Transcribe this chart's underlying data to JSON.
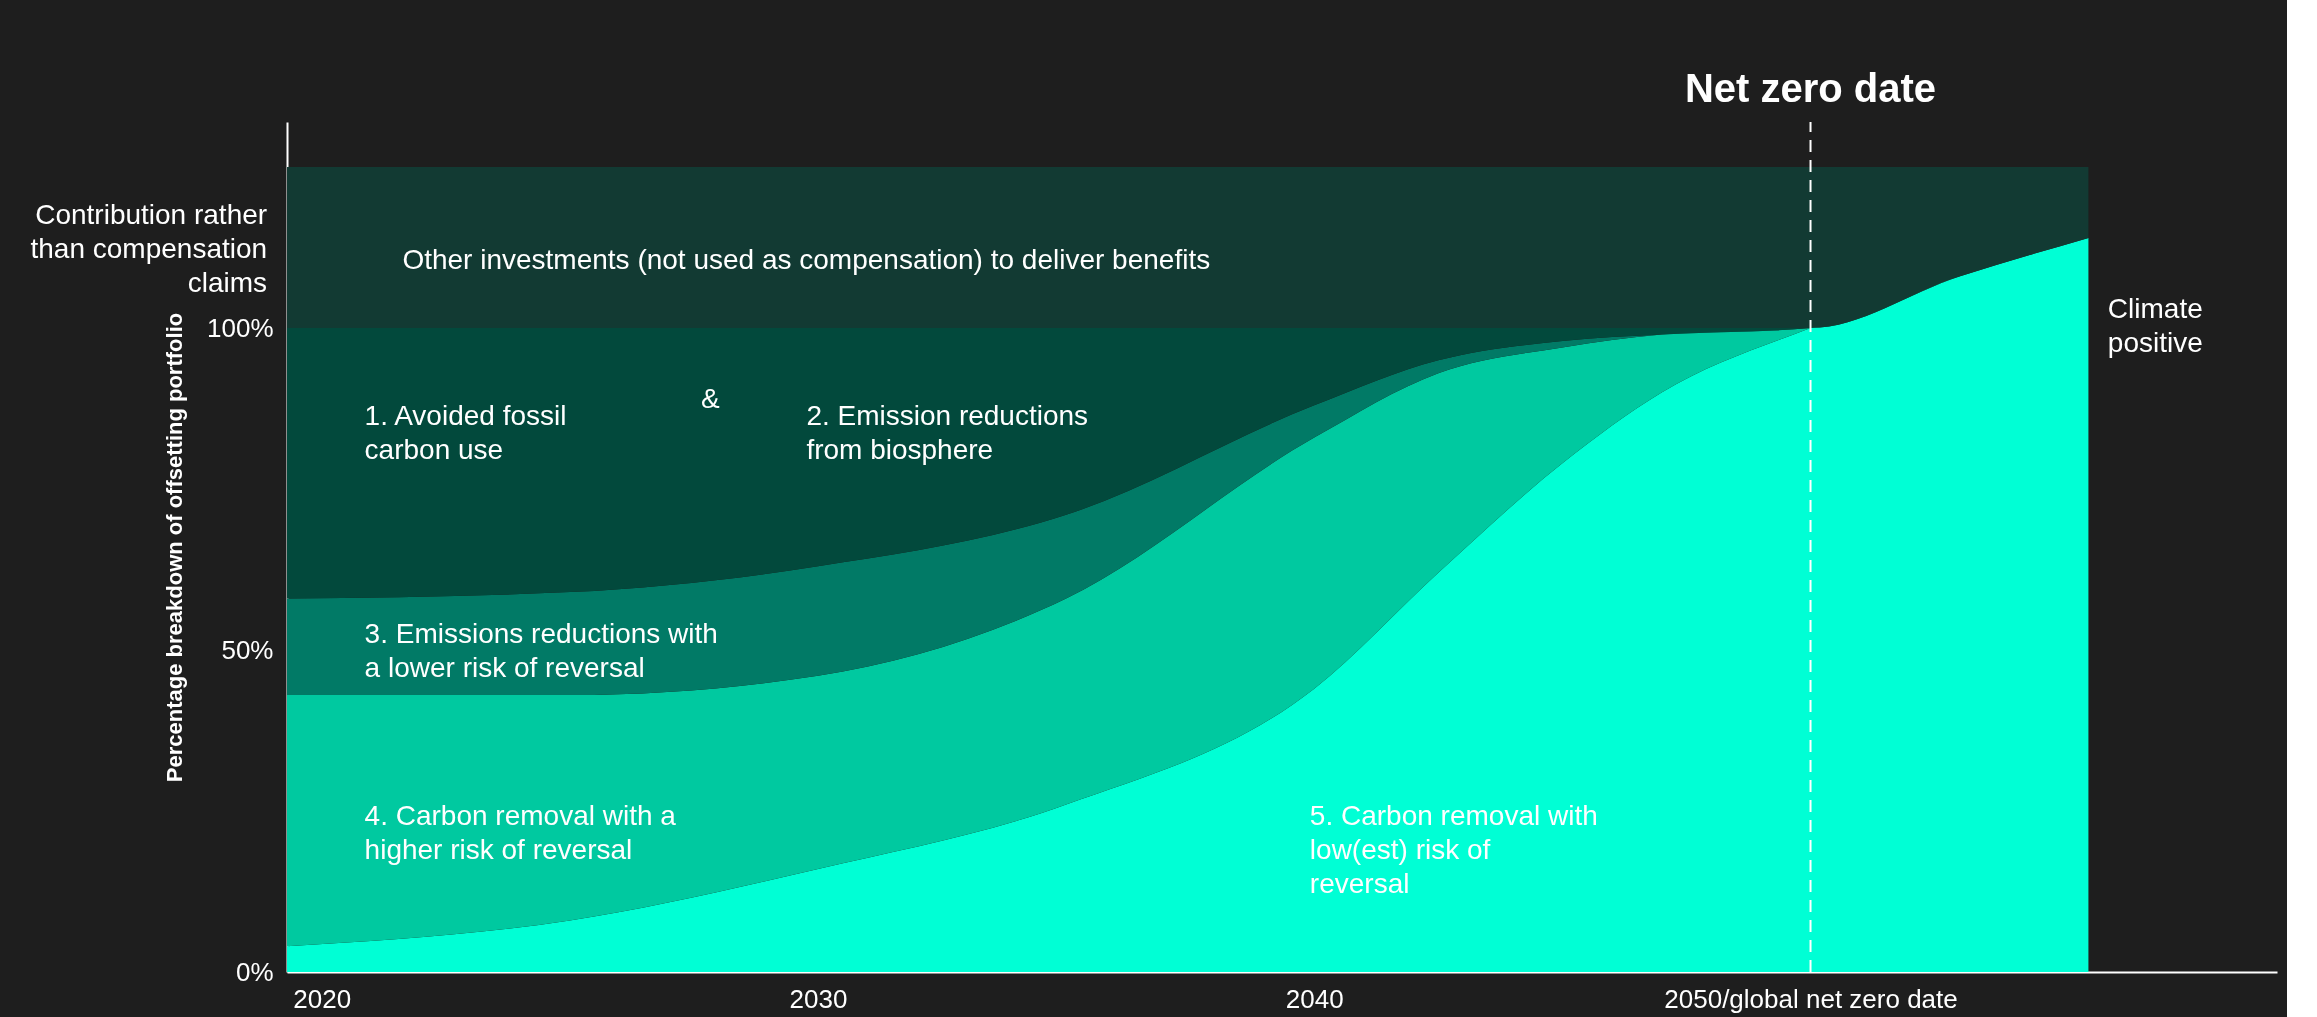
{
  "chart_data": {
    "type": "area",
    "stacked": true,
    "ylabel": "Percentage breakdown of offsetting portfolio",
    "x": [
      2019.3,
      2025,
      2030,
      2035,
      2040,
      2042.5,
      2045,
      2047,
      2050,
      2053,
      2055.6
    ],
    "series": [
      {
        "color": "#00ffd5",
        "values": [
          4,
          8,
          16,
          26,
          44,
          62,
          79,
          90,
          100,
          108,
          114
        ]
      },
      {
        "color": "#00c9a0",
        "values": [
          39,
          35,
          30,
          32,
          39,
          31,
          18,
          9,
          0,
          0,
          0
        ]
      },
      {
        "color": "#017a66",
        "values": [
          15,
          16,
          17,
          13,
          5,
          2,
          1,
          0,
          0,
          0,
          0
        ]
      },
      {
        "color": "#02493c",
        "values": [
          42,
          41,
          37,
          29,
          12,
          5,
          2,
          1,
          0,
          0,
          0
        ]
      },
      {
        "color": "#123a33",
        "values": [
          25,
          25,
          25,
          25,
          25,
          25,
          25,
          25,
          25,
          17,
          11
        ]
      }
    ],
    "xlim": [
      2019.3,
      2059.4
    ],
    "ylim": [
      0,
      132
    ],
    "xticks": [
      2020,
      2030,
      2040,
      {
        "value": 2050,
        "label": "2050/global net zero date"
      }
    ],
    "yticks": [
      {
        "value": 0,
        "label": "0%"
      },
      {
        "value": 50,
        "label": "50%"
      },
      {
        "value": 100,
        "label": "100%"
      }
    ],
    "ref_lines": [
      {
        "axis": "x",
        "value": 2050,
        "label": "Net zero date",
        "color": "#ffffff",
        "line_style": "dashed"
      }
    ],
    "annotations": [
      "Other investments (not used as compensation) to deliver benefits",
      "1. Avoided fossil carbon use",
      "&",
      "2. Emission reductions from biosphere",
      "3. Emissions reductions with a lower risk of reversal",
      "4. Carbon removal with a higher risk of reversal",
      "5. Carbon removal with low(est) risk of reversal",
      "Climate positive",
      "Contribution rather than compensation claims"
    ],
    "grid": false
  }
}
